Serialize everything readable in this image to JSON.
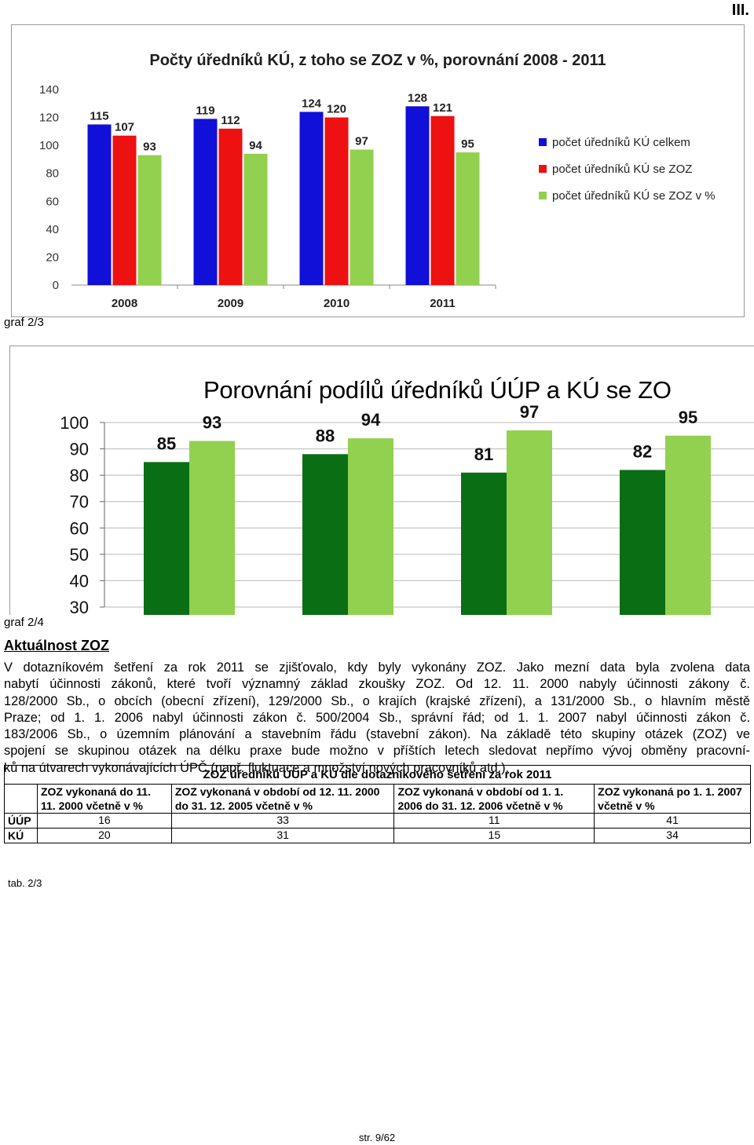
{
  "page_mark": "III.",
  "chart1": {
    "title": "Počty úředníků KÚ, z toho se ZOZ v %, porovnání 2008 - 2011",
    "caption": "graf 2/3",
    "chart_data": {
      "type": "bar",
      "title": "Počty úředníků KÚ, z toho se ZOZ v %, porovnání 2008 - 2011",
      "categories": [
        "2008",
        "2009",
        "2010",
        "2011"
      ],
      "ylim": [
        0,
        140
      ],
      "yticks": [
        "0",
        "20",
        "40",
        "60",
        "80",
        "100",
        "120",
        "140"
      ],
      "legend_position": "right",
      "series": [
        {
          "name": "počet úředníků KÚ celkem",
          "color": "#1010d8",
          "values": [
            115,
            119,
            124,
            128
          ]
        },
        {
          "name": "počet úředníků KÚ se ZOZ",
          "color": "#ee1111",
          "values": [
            107,
            112,
            120,
            121
          ]
        },
        {
          "name": "počet úředníků KÚ se ZOZ v %",
          "color": "#92d050",
          "values": [
            93,
            94,
            97,
            95
          ]
        }
      ]
    }
  },
  "chart2": {
    "title": "Porovnání  podílů úředníků ÚÚP a KÚ se ZO",
    "caption": "graf 2/4",
    "chart_data": {
      "type": "bar",
      "title": "Porovnání  podílů úředníků ÚÚP a KÚ se ZO",
      "ylim": [
        30,
        100
      ],
      "yticks": [
        "30",
        "40",
        "50",
        "60",
        "70",
        "80",
        "90",
        "100"
      ],
      "grid": true,
      "series": [
        {
          "color": "#0a6e14",
          "values": [
            85,
            88,
            81,
            82
          ]
        },
        {
          "color": "#92d050",
          "values": [
            93,
            94,
            97,
            95
          ]
        }
      ]
    }
  },
  "section": {
    "heading": "Aktuálnost ZOZ",
    "lines": [
      "V dotazníkovém šetření za rok 2011 se zjišťovalo, kdy byly vykonány ZOZ. Jako mezní data byla zvolena data",
      "nabytí účinnosti zákonů, které tvoří významný základ zkoušky ZOZ. Od 12. 11. 2000 nabyly účinnosti zákony č.",
      "128/2000 Sb., o obcích (obecní zřízení), 129/2000 Sb., o krajích (krajské zřízení), a 131/2000 Sb., o hlavním městě",
      "Praze; od 1. 1. 2006 nabyl účinnosti zákon č. 500/2004 Sb., správní řád; od 1. 1. 2007 nabyl účinnosti zákon č.",
      "183/2006 Sb., o územním plánování a stavebním řádu (stavební zákon). Na základě této skupiny otázek (ZOZ) ve",
      "spojení se skupinou otázek na délku praxe bude možno v příštích letech sledovat nepřímo vývoj obměny pracovní-",
      "ků na útvarech vykonávajících ÚPČ (např. fluktuace a množství nových pracovníků atd.)."
    ]
  },
  "table": {
    "caption": "ZOZ úředníků ÚÚP a KÚ dle dotazníkového šetření za rok 2011",
    "headers": [
      "ZOZ vykonaná do 11. 11. 2000 včetně v %",
      "ZOZ vykonaná v období od 12. 11. 2000 do 31. 12. 2005 včetně v %",
      "ZOZ vykonaná v období od 1. 1. 2006 do 31. 12. 2006 včetně v %",
      "ZOZ vykonaná po 1. 1. 2007 včetně v %"
    ],
    "rows": [
      {
        "label": "ÚÚP",
        "values": [
          "16",
          "33",
          "11",
          "41"
        ]
      },
      {
        "label": "KÚ",
        "values": [
          "20",
          "31",
          "15",
          "34"
        ]
      }
    ],
    "label": "tab. 2/3"
  },
  "page_number": "str. 9/62"
}
